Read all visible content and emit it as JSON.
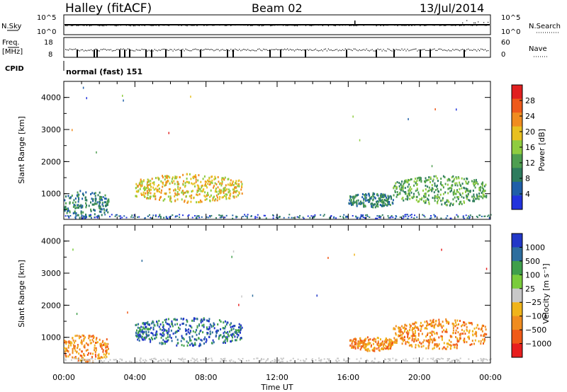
{
  "header": {
    "station": "Halley (fitACF)",
    "beam": "Beam 02",
    "date": "13/Jul/2014"
  },
  "strip_nsky": {
    "left_label": "N.Sky",
    "right_label": "N.Search",
    "left_ticks": [
      "10^5",
      "10^0"
    ],
    "right_ticks": [
      "10^5",
      "10^0"
    ]
  },
  "strip_freq": {
    "left_label_top": "Freq.",
    "left_label_bottom": "[MHz]",
    "right_label": "Nave",
    "left_ticks": [
      "18",
      "8"
    ],
    "right_ticks": [
      "60",
      "0"
    ]
  },
  "strip_cpid": {
    "label": "CPID",
    "value": "normal (fast) 151"
  },
  "colors": {
    "power": [
      "#2233dd",
      "#1f5fa8",
      "#2e7c5e",
      "#4e9e50",
      "#8fcc3f",
      "#e8c020",
      "#f08c1f",
      "#ee5a1a",
      "#e12020"
    ],
    "velocity": [
      "#e81e1e",
      "#f05a18",
      "#f08c1f",
      "#f0b41a",
      "#c8c8c8",
      "#7acc3c",
      "#3f9f4b",
      "#2e6e9e",
      "#2238c8"
    ]
  },
  "chart_data": [
    {
      "type": "heatmap",
      "title": "",
      "xlabel": "",
      "ylabel": "Slant Range [km]",
      "xlim": [
        "00:00",
        "00:00"
      ],
      "ylim": [
        200,
        4500
      ],
      "x_ticks": [
        "00:00",
        "04:00",
        "08:00",
        "12:00",
        "16:00",
        "20:00",
        "00:00"
      ],
      "y_ticks": [
        "1000",
        "2000",
        "3000",
        "4000"
      ],
      "colorbar": {
        "label": "Power [dB]",
        "range": [
          0,
          32
        ],
        "ticks": [
          "4",
          "8",
          "12",
          "16",
          "20",
          "24",
          "28"
        ]
      },
      "regions": [
        {
          "time_range": [
            "00:00",
            "02:30"
          ],
          "range_km": [
            250,
            1150
          ],
          "value_db": 6
        },
        {
          "time_range": [
            "04:00",
            "10:00"
          ],
          "range_km": [
            750,
            1650
          ],
          "value_db": 18
        },
        {
          "time_range": [
            "16:00",
            "18:30"
          ],
          "range_km": [
            600,
            1050
          ],
          "value_db": 8
        },
        {
          "time_range": [
            "18:30",
            "23:45"
          ],
          "range_km": [
            650,
            1600
          ],
          "value_db": 10
        }
      ]
    },
    {
      "type": "heatmap",
      "title": "",
      "xlabel": "Time UT",
      "ylabel": "Slant Range [km]",
      "xlim": [
        "00:00",
        "00:00"
      ],
      "ylim": [
        200,
        4500
      ],
      "x_ticks": [
        "00:00",
        "04:00",
        "08:00",
        "12:00",
        "16:00",
        "20:00",
        "00:00"
      ],
      "y_ticks": [
        "1000",
        "2000",
        "3000",
        "4000"
      ],
      "colorbar": {
        "label": "Velocity [m s⁻¹]",
        "ticks": [
          "1000",
          "500",
          "100",
          "25",
          "−25",
          "−100",
          "−500",
          "−1000"
        ]
      },
      "regions": [
        {
          "time_range": [
            "00:00",
            "02:30"
          ],
          "range_km": [
            250,
            1150
          ],
          "value_ms": -300
        },
        {
          "time_range": [
            "04:00",
            "10:00"
          ],
          "range_km": [
            750,
            1650
          ],
          "value_ms": 150
        },
        {
          "time_range": [
            "16:00",
            "18:30"
          ],
          "range_km": [
            600,
            1050
          ],
          "value_ms": -100
        },
        {
          "time_range": [
            "18:30",
            "23:45"
          ],
          "range_km": [
            650,
            1600
          ],
          "value_ms": -400
        }
      ]
    }
  ]
}
